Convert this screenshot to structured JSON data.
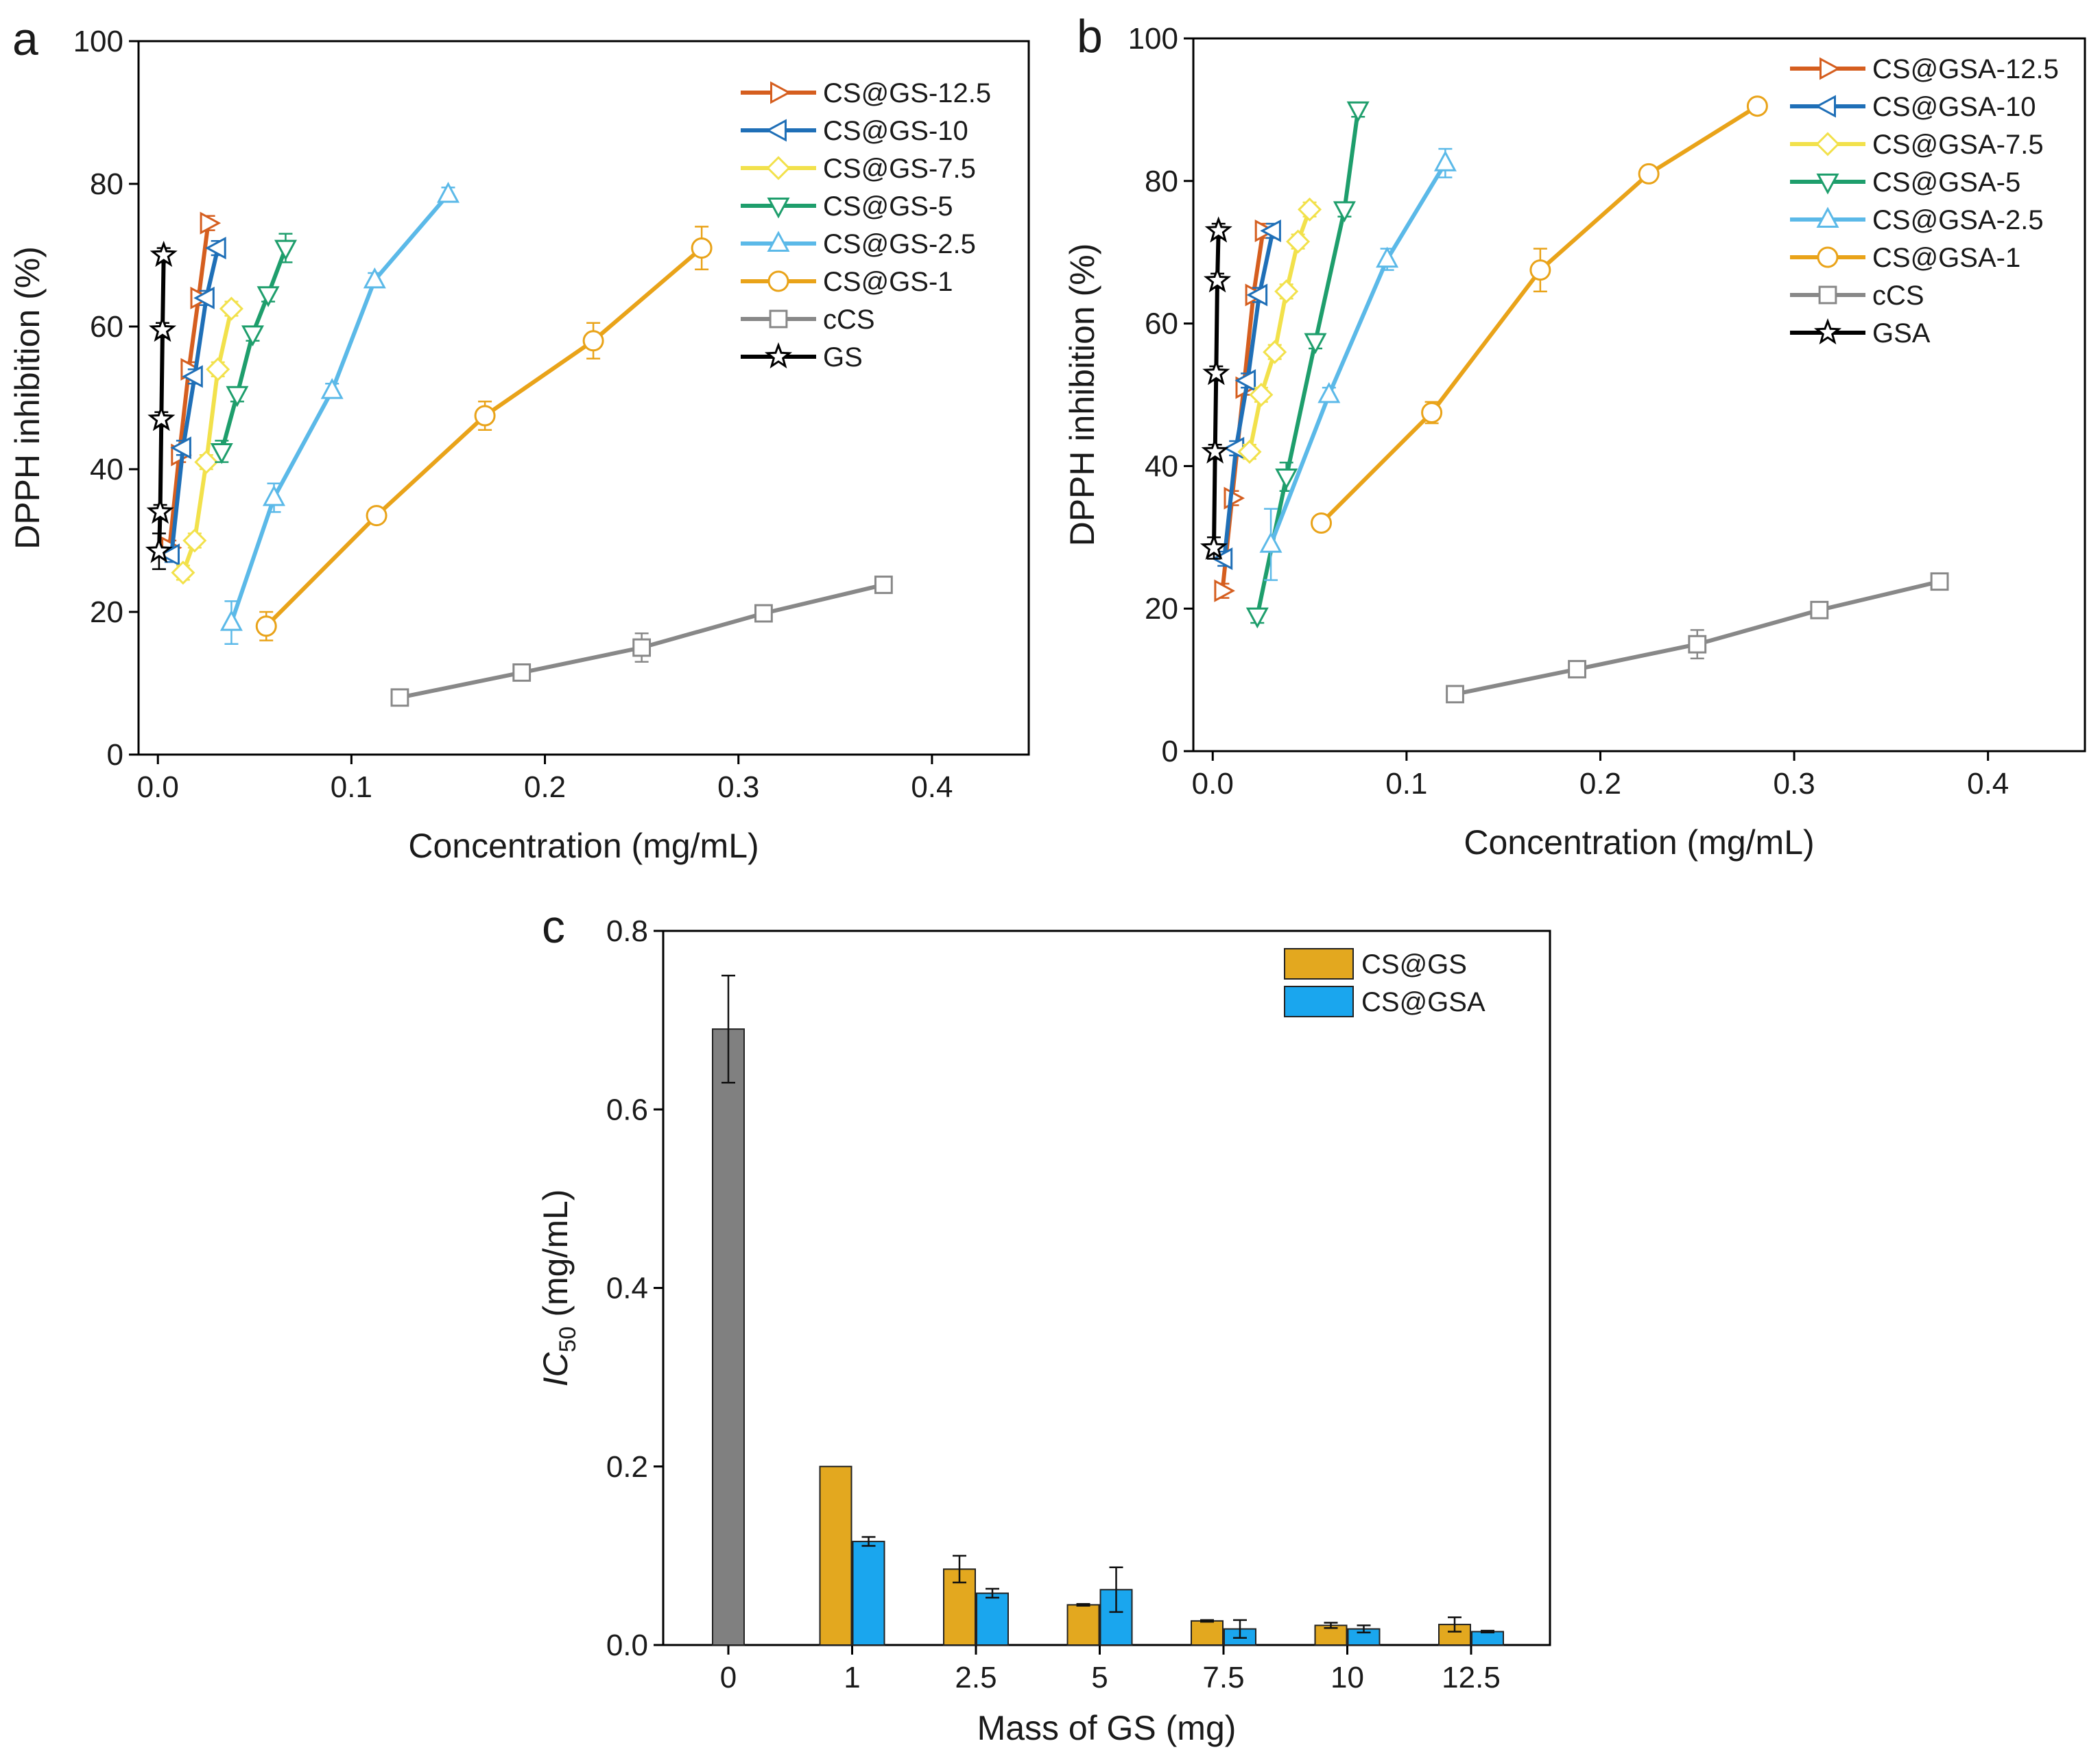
{
  "chart_data": [
    {
      "panel": "a",
      "type": "line",
      "xlabel": "Concentration (mg/mL)",
      "ylabel": "DPPH inhibition (%)",
      "xlim": [
        -0.01,
        0.45
      ],
      "ylim": [
        0,
        100
      ],
      "xticks": [
        0.0,
        0.1,
        0.2,
        0.3,
        0.4
      ],
      "xtick_labels": [
        "0.0",
        "0.1",
        "0.2",
        "0.3",
        "0.4"
      ],
      "yticks": [
        0,
        20,
        40,
        60,
        80,
        100
      ],
      "ytick_labels": [
        "0",
        "20",
        "40",
        "60",
        "80",
        "100"
      ],
      "legend_position": "top-right",
      "series": [
        {
          "name": "CS@GS-12.5",
          "color": "#D55E1F",
          "marker": "triangle-right",
          "x": [
            0.006,
            0.011,
            0.016,
            0.021,
            0.026
          ],
          "y": [
            29,
            42,
            54,
            64,
            74.5
          ],
          "err": [
            1,
            1,
            1,
            1,
            1
          ]
        },
        {
          "name": "CS@GS-10",
          "color": "#1F6FB7",
          "marker": "triangle-left",
          "x": [
            0.007,
            0.013,
            0.019,
            0.025,
            0.031
          ],
          "y": [
            28,
            43,
            53,
            64,
            71
          ],
          "err": [
            1,
            1,
            1,
            1,
            1
          ]
        },
        {
          "name": "CS@GS-7.5",
          "color": "#F2E14B",
          "marker": "diamond",
          "x": [
            0.013,
            0.019,
            0.025,
            0.031,
            0.038
          ],
          "y": [
            25.5,
            30,
            41,
            54,
            62.5
          ],
          "err": [
            1,
            1,
            1,
            1,
            1
          ]
        },
        {
          "name": "CS@GS-5",
          "color": "#1E9E6C",
          "marker": "triangle-down",
          "x": [
            0.033,
            0.041,
            0.049,
            0.057,
            0.066
          ],
          "y": [
            42.5,
            50.5,
            59,
            64.5,
            71
          ],
          "err": [
            1.5,
            1,
            1,
            1,
            2
          ]
        },
        {
          "name": "CS@GS-2.5",
          "color": "#5BB9E8",
          "marker": "triangle-up",
          "x": [
            0.038,
            0.06,
            0.09,
            0.112,
            0.15
          ],
          "y": [
            18.5,
            36,
            51,
            66.5,
            78.5
          ],
          "err": [
            3,
            2,
            1,
            1,
            1
          ]
        },
        {
          "name": "CS@GS-1",
          "color": "#E9A319",
          "marker": "circle",
          "x": [
            0.056,
            0.113,
            0.169,
            0.225,
            0.281
          ],
          "y": [
            18,
            33.5,
            47.5,
            58,
            71
          ],
          "err": [
            2,
            1,
            2,
            2.5,
            3
          ]
        },
        {
          "name": "cCS",
          "color": "#888888",
          "marker": "square",
          "x": [
            0.125,
            0.188,
            0.25,
            0.313,
            0.375
          ],
          "y": [
            8,
            11.5,
            15,
            19.8,
            23.8
          ],
          "err": [
            0.8,
            1,
            2,
            1,
            1
          ]
        },
        {
          "name": "GS",
          "color": "#000000",
          "marker": "star",
          "x": [
            0.0006,
            0.0012,
            0.0018,
            0.0024,
            0.003
          ],
          "y": [
            28.5,
            34,
            47,
            59.5,
            70
          ],
          "err": [
            2.5,
            1,
            1,
            1,
            1
          ]
        }
      ]
    },
    {
      "panel": "b",
      "type": "line",
      "xlabel": "Concentration (mg/mL)",
      "ylabel": "DPPH inhibition (%)",
      "xlim": [
        -0.01,
        0.45
      ],
      "ylim": [
        0,
        100
      ],
      "xticks": [
        0.0,
        0.1,
        0.2,
        0.3,
        0.4
      ],
      "xtick_labels": [
        "0.0",
        "0.1",
        "0.2",
        "0.3",
        "0.4"
      ],
      "yticks": [
        0,
        20,
        40,
        60,
        80,
        100
      ],
      "ytick_labels": [
        "0",
        "20",
        "40",
        "60",
        "80",
        "100"
      ],
      "legend_position": "top-right",
      "series": [
        {
          "name": "CS@GSA-12.5",
          "color": "#D55E1F",
          "marker": "triangle-right",
          "x": [
            0.005,
            0.01,
            0.016,
            0.021,
            0.026
          ],
          "y": [
            22.5,
            35.5,
            51,
            64,
            73
          ],
          "err": [
            1,
            1,
            1,
            1,
            1
          ]
        },
        {
          "name": "CS@GSA-10",
          "color": "#1F6FB7",
          "marker": "triangle-left",
          "x": [
            0.006,
            0.012,
            0.018,
            0.024,
            0.031
          ],
          "y": [
            27,
            42.5,
            52,
            64,
            73
          ],
          "err": [
            1,
            1,
            1,
            1,
            1
          ]
        },
        {
          "name": "CS@GSA-7.5",
          "color": "#F2E14B",
          "marker": "diamond",
          "x": [
            0.019,
            0.025,
            0.032,
            0.038,
            0.044,
            0.05
          ],
          "y": [
            42,
            50,
            56,
            64.5,
            71.5,
            76
          ],
          "err": [
            1,
            1,
            1,
            1,
            1,
            1
          ]
        },
        {
          "name": "CS@GSA-5",
          "color": "#1E9E6C",
          "marker": "triangle-down",
          "x": [
            0.023,
            0.038,
            0.053,
            0.068,
            0.075
          ],
          "y": [
            19,
            38.5,
            57.5,
            76,
            90
          ],
          "err": [
            1,
            2,
            1,
            1,
            1
          ]
        },
        {
          "name": "CS@GSA-2.5",
          "color": "#5BB9E8",
          "marker": "triangle-up",
          "x": [
            0.03,
            0.06,
            0.09,
            0.12
          ],
          "y": [
            29,
            50,
            69,
            82.5
          ],
          "err": [
            5,
            1,
            1.5,
            2
          ]
        },
        {
          "name": "CS@GSA-1",
          "color": "#E9A319",
          "marker": "circle",
          "x": [
            0.056,
            0.113,
            0.169,
            0.225,
            0.281
          ],
          "y": [
            32,
            47.5,
            67.5,
            81,
            90.5
          ],
          "err": [
            1,
            1.5,
            3,
            1,
            1
          ]
        },
        {
          "name": "cCS",
          "color": "#888888",
          "marker": "square",
          "x": [
            0.125,
            0.188,
            0.25,
            0.313,
            0.375
          ],
          "y": [
            8,
            11.5,
            15,
            19.8,
            23.8
          ],
          "err": [
            0.8,
            1,
            2,
            1,
            1
          ]
        },
        {
          "name": "GSA",
          "color": "#000000",
          "marker": "star",
          "x": [
            0.0006,
            0.0012,
            0.0018,
            0.0024,
            0.003
          ],
          "y": [
            28.5,
            42,
            53,
            66,
            73
          ],
          "err": [
            1.5,
            1,
            1,
            1,
            1
          ]
        }
      ]
    },
    {
      "panel": "c",
      "type": "bar",
      "xlabel": "Mass of GS (mg)",
      "ylabel_italic": "IC",
      "ylabel_sub": "50",
      "ylabel_rest": " (mg/mL)",
      "categories": [
        "0",
        "1",
        "2.5",
        "5",
        "7.5",
        "10",
        "12.5"
      ],
      "ylim": [
        0,
        0.8
      ],
      "yticks": [
        0.0,
        0.2,
        0.4,
        0.6,
        0.8
      ],
      "ytick_labels": [
        "0.0",
        "0.2",
        "0.4",
        "0.6",
        "0.8"
      ],
      "legend_position": "top-right",
      "control": {
        "category": "0",
        "value": 0.69,
        "err": 0.06,
        "color": "#808080"
      },
      "series": [
        {
          "name": "CS@GS",
          "color": "#E3A81F",
          "values": [
            null,
            0.2,
            0.085,
            0.045,
            0.027,
            0.022,
            0.023
          ],
          "err": [
            null,
            0.0,
            0.015,
            0.001,
            0.001,
            0.003,
            0.008
          ]
        },
        {
          "name": "CS@GSA",
          "color": "#1AA6EE",
          "values": [
            null,
            0.116,
            0.058,
            0.062,
            0.018,
            0.018,
            0.015
          ],
          "err": [
            null,
            0.005,
            0.005,
            0.025,
            0.01,
            0.004,
            0.001
          ]
        }
      ]
    }
  ],
  "panel_letters": [
    "a",
    "b",
    "c"
  ]
}
